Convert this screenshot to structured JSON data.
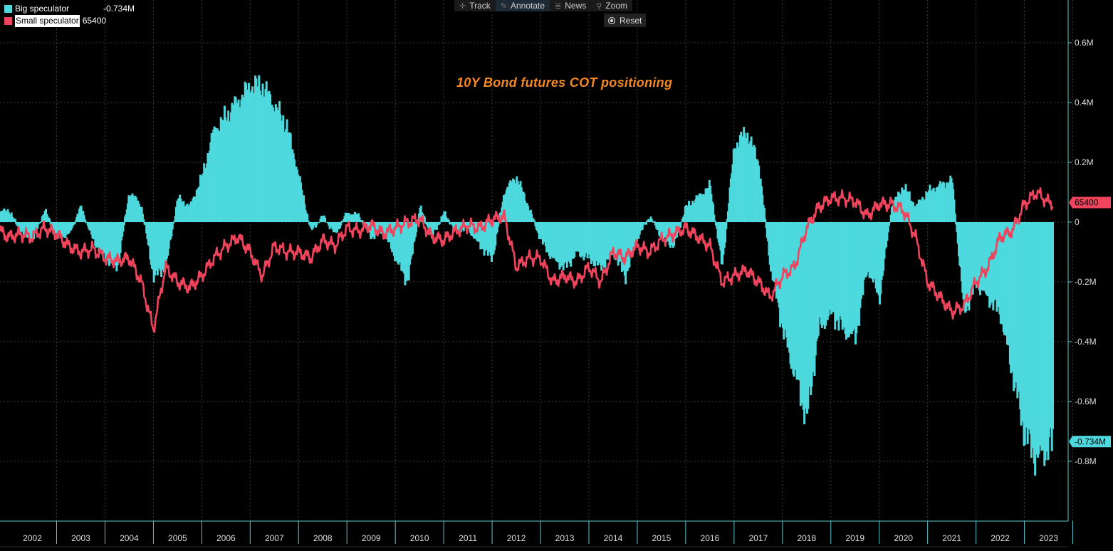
{
  "legend": {
    "big": {
      "label": "Big speculator",
      "value": "-0.734M",
      "color": "#4dd9dd"
    },
    "small": {
      "label": "Small speculator",
      "value": "65400",
      "color": "#f0435c"
    }
  },
  "toolbar": {
    "track": "Track",
    "annotate": "Annotate",
    "news": "News",
    "zoom": "Zoom",
    "reset": "Reset"
  },
  "chart_data": {
    "type": "bar",
    "title": "10Y Bond futures COT positioning",
    "ylim": [
      -1.0,
      0.72
    ],
    "xlim": [
      2001.83,
      2023.58
    ],
    "y_ticks": [
      {
        "value": 0.6,
        "label": "0.6M"
      },
      {
        "value": 0.4,
        "label": "0.4M"
      },
      {
        "value": 0.2,
        "label": "0.2M"
      },
      {
        "value": 0,
        "label": "0"
      },
      {
        "value": -0.2,
        "label": "-0.2M"
      },
      {
        "value": -0.4,
        "label": "-0.4M"
      },
      {
        "value": -0.6,
        "label": "-0.6M"
      },
      {
        "value": -0.8,
        "label": "-0.8M"
      }
    ],
    "x_ticks": [
      "2002",
      "2003",
      "2004",
      "2005",
      "2006",
      "2007",
      "2008",
      "2009",
      "2010",
      "2011",
      "2012",
      "2013",
      "2014",
      "2015",
      "2016",
      "2017",
      "2018",
      "2019",
      "2020",
      "2021",
      "2022",
      "2023"
    ],
    "grid": true,
    "series": [
      {
        "name": "Big speculator",
        "style": "bars",
        "color": "#4dd9dd",
        "last_label": "-0.734M",
        "x": [
          2001.83,
          2002.0,
          2002.25,
          2002.5,
          2002.75,
          2003.0,
          2003.25,
          2003.5,
          2003.75,
          2004.0,
          2004.25,
          2004.5,
          2004.75,
          2005.0,
          2005.25,
          2005.5,
          2005.75,
          2006.0,
          2006.25,
          2006.5,
          2006.75,
          2007.0,
          2007.25,
          2007.5,
          2007.75,
          2008.0,
          2008.25,
          2008.5,
          2008.75,
          2009.0,
          2009.25,
          2009.5,
          2009.75,
          2010.0,
          2010.25,
          2010.5,
          2010.75,
          2011.0,
          2011.25,
          2011.5,
          2011.75,
          2012.0,
          2012.25,
          2012.5,
          2012.75,
          2013.0,
          2013.25,
          2013.5,
          2013.75,
          2014.0,
          2014.25,
          2014.5,
          2014.75,
          2015.0,
          2015.25,
          2015.5,
          2015.75,
          2016.0,
          2016.25,
          2016.5,
          2016.75,
          2017.0,
          2017.25,
          2017.5,
          2017.75,
          2018.0,
          2018.25,
          2018.5,
          2018.75,
          2019.0,
          2019.25,
          2019.5,
          2019.75,
          2020.0,
          2020.25,
          2020.5,
          2020.75,
          2021.0,
          2021.25,
          2021.5,
          2021.75,
          2022.0,
          2022.25,
          2022.5,
          2022.75,
          2023.0,
          2023.25,
          2023.5
        ],
        "values": [
          0.03,
          0.04,
          -0.03,
          -0.06,
          0.04,
          -0.05,
          -0.04,
          0.05,
          -0.06,
          -0.12,
          -0.15,
          0.1,
          0.05,
          -0.18,
          -0.15,
          0.08,
          0.05,
          0.15,
          0.3,
          0.35,
          0.4,
          0.45,
          0.45,
          0.38,
          0.32,
          0.15,
          -0.03,
          0.02,
          -0.04,
          0.03,
          0.02,
          -0.05,
          -0.03,
          -0.12,
          -0.2,
          0.05,
          -0.05,
          0.03,
          -0.03,
          -0.02,
          -0.08,
          -0.12,
          0.1,
          0.15,
          0.05,
          -0.06,
          -0.12,
          -0.15,
          -0.1,
          -0.12,
          -0.15,
          -0.1,
          -0.18,
          -0.05,
          0.02,
          -0.05,
          -0.08,
          0.05,
          0.08,
          0.12,
          -0.15,
          0.25,
          0.3,
          0.2,
          -0.15,
          -0.35,
          -0.5,
          -0.65,
          -0.35,
          -0.3,
          -0.35,
          -0.38,
          -0.15,
          -0.25,
          0.05,
          0.12,
          0.05,
          0.1,
          0.12,
          0.14,
          -0.3,
          -0.2,
          -0.25,
          -0.3,
          -0.5,
          -0.7,
          -0.78,
          -0.734
        ]
      },
      {
        "name": "Small speculator",
        "style": "line",
        "color": "#f0435c",
        "last_label": "65400",
        "x": [
          2001.83,
          2002.0,
          2002.25,
          2002.5,
          2002.75,
          2003.0,
          2003.25,
          2003.5,
          2003.75,
          2004.0,
          2004.25,
          2004.5,
          2004.75,
          2005.0,
          2005.25,
          2005.5,
          2005.75,
          2006.0,
          2006.25,
          2006.5,
          2006.75,
          2007.0,
          2007.25,
          2007.5,
          2007.75,
          2008.0,
          2008.25,
          2008.5,
          2008.75,
          2009.0,
          2009.25,
          2009.5,
          2009.75,
          2010.0,
          2010.25,
          2010.5,
          2010.75,
          2011.0,
          2011.25,
          2011.5,
          2011.75,
          2012.0,
          2012.25,
          2012.5,
          2012.75,
          2013.0,
          2013.25,
          2013.5,
          2013.75,
          2014.0,
          2014.25,
          2014.5,
          2014.75,
          2015.0,
          2015.25,
          2015.5,
          2015.75,
          2016.0,
          2016.25,
          2016.5,
          2016.75,
          2017.0,
          2017.25,
          2017.5,
          2017.75,
          2018.0,
          2018.25,
          2018.5,
          2018.75,
          2019.0,
          2019.25,
          2019.5,
          2019.75,
          2020.0,
          2020.25,
          2020.5,
          2020.75,
          2021.0,
          2021.25,
          2021.5,
          2021.75,
          2022.0,
          2022.25,
          2022.5,
          2022.75,
          2023.0,
          2023.25,
          2023.5
        ],
        "values": [
          -0.03,
          -0.05,
          -0.04,
          -0.05,
          -0.02,
          -0.04,
          -0.08,
          -0.1,
          -0.09,
          -0.12,
          -0.13,
          -0.12,
          -0.2,
          -0.36,
          -0.15,
          -0.2,
          -0.22,
          -0.18,
          -0.12,
          -0.08,
          -0.05,
          -0.1,
          -0.18,
          -0.08,
          -0.1,
          -0.1,
          -0.12,
          -0.06,
          -0.08,
          -0.02,
          -0.03,
          -0.01,
          -0.04,
          -0.02,
          0.0,
          0.01,
          -0.05,
          -0.06,
          -0.03,
          -0.01,
          -0.02,
          0.01,
          0.02,
          -0.15,
          -0.12,
          -0.12,
          -0.2,
          -0.18,
          -0.2,
          -0.15,
          -0.2,
          -0.1,
          -0.12,
          -0.08,
          -0.1,
          -0.06,
          -0.04,
          -0.02,
          -0.05,
          -0.08,
          -0.2,
          -0.18,
          -0.16,
          -0.2,
          -0.25,
          -0.18,
          -0.15,
          -0.02,
          0.05,
          0.08,
          0.08,
          0.07,
          0.02,
          0.06,
          0.06,
          0.04,
          -0.05,
          -0.2,
          -0.25,
          -0.3,
          -0.28,
          -0.2,
          -0.15,
          -0.05,
          -0.03,
          0.06,
          0.1,
          0.0654
        ]
      }
    ]
  }
}
